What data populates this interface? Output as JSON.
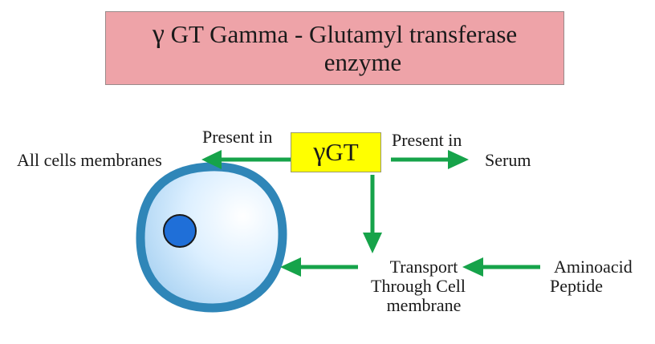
{
  "title": {
    "gamma_symbol": "γ",
    "line1": "GT Gamma - Glutamyl transferase",
    "line2": "enzyme"
  },
  "center_box": {
    "gamma_symbol": "γ",
    "label": "GT"
  },
  "labels": {
    "present_in_left": "Present in",
    "all_cells": "All cells membranes",
    "present_in_right": "Present in",
    "serum": "Serum",
    "transport_line1": "Transport",
    "transport_line2": "Through Cell",
    "transport_line3": "membrane",
    "aminoacid": "Aminoacid",
    "peptide": "Peptide"
  },
  "colors": {
    "title_bg": "#eea3a8",
    "box_bg": "#ffff00",
    "arrow": "#16a34a",
    "cell_membrane": "#2f86b8",
    "cell_inner": "#cde6f7",
    "nucleus": "#1f6fd8"
  }
}
